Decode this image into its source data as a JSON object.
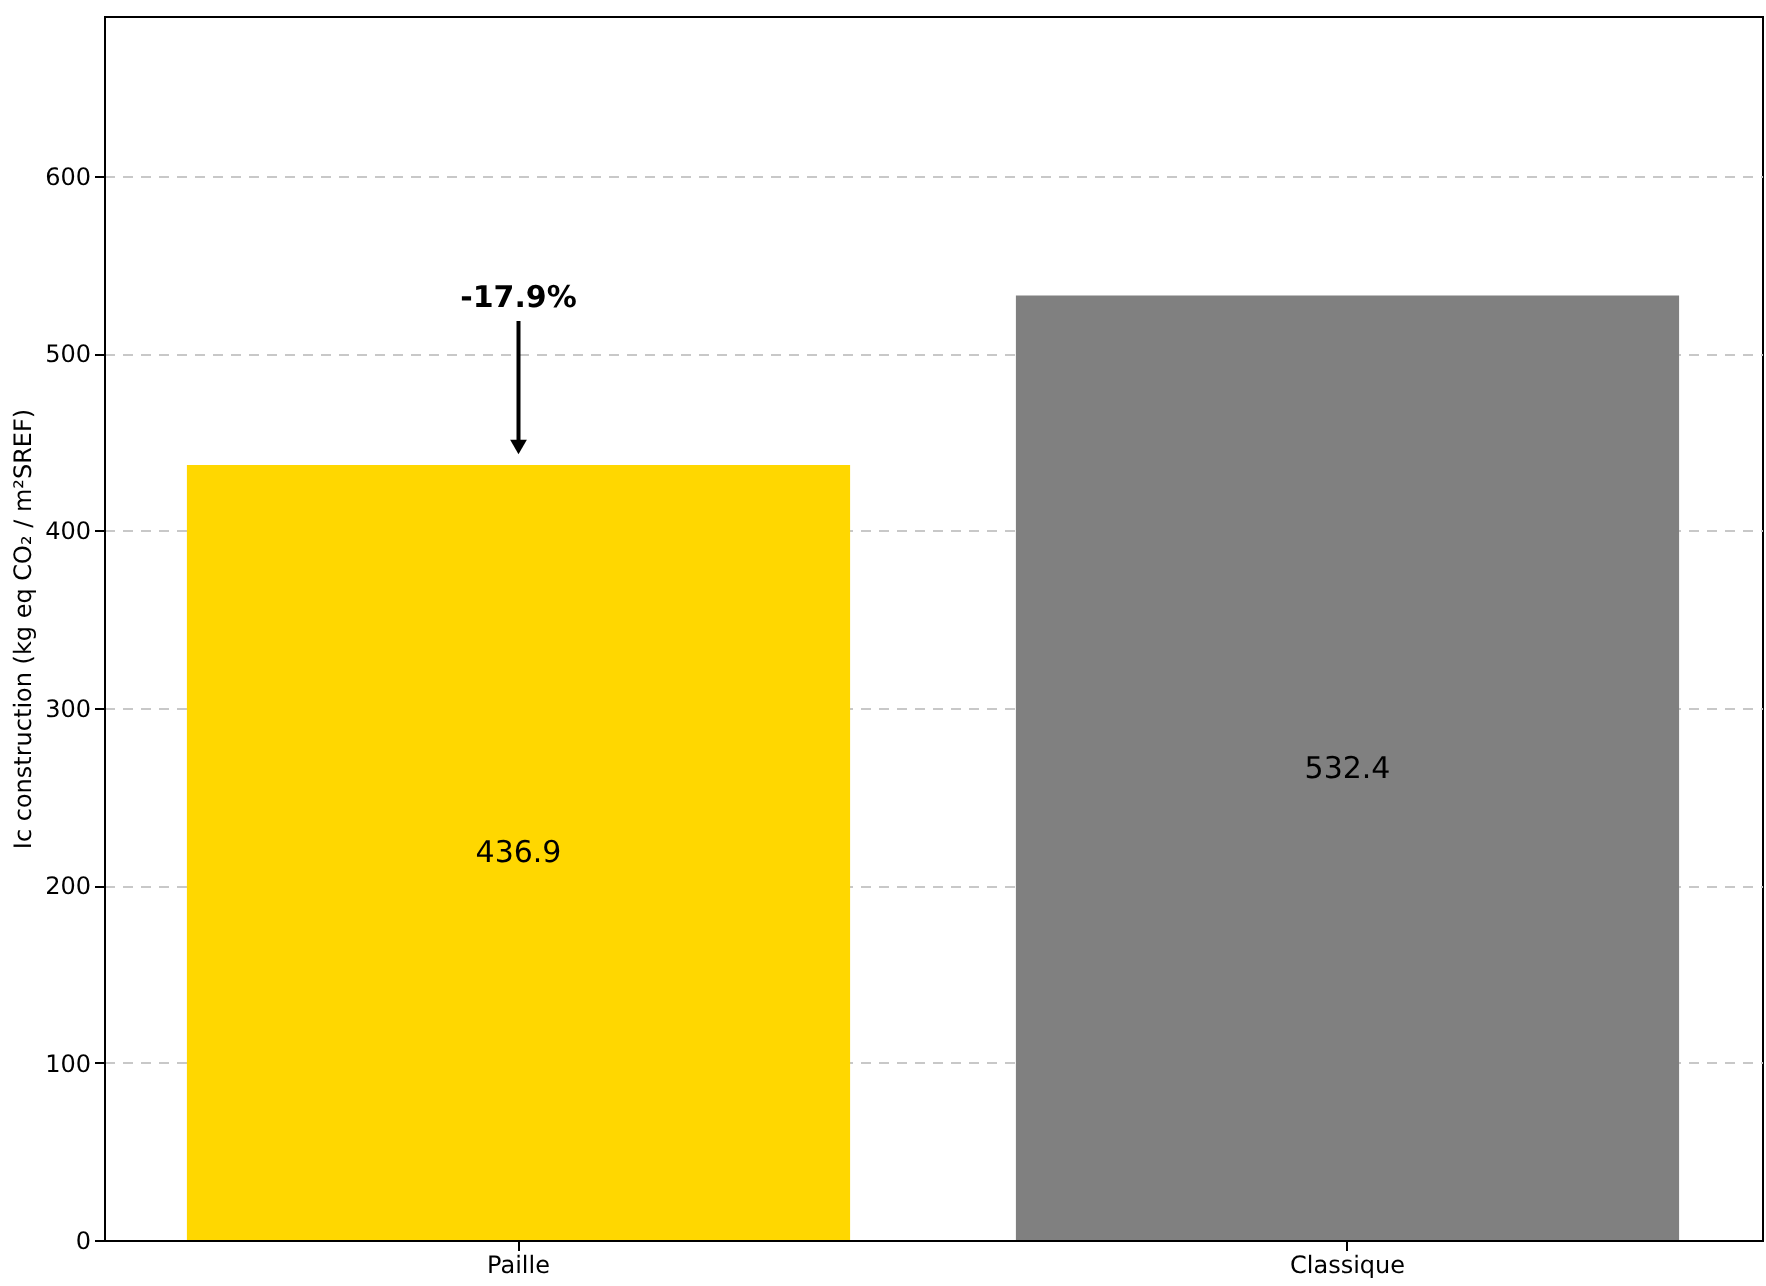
{
  "chart_data": {
    "type": "bar",
    "ylabel": "Ic construction (kg eq CO₂ / m²SREF)",
    "categories": [
      "Paille",
      "Classique"
    ],
    "values": [
      436.9,
      532.4
    ],
    "colors": [
      "#ffd700",
      "#808080"
    ],
    "ylim": [
      0,
      690
    ],
    "yticks": [
      0,
      100,
      200,
      300,
      400,
      500,
      600
    ],
    "grid": "y",
    "data_labels": true,
    "annotations": [
      "-17.9%"
    ]
  }
}
